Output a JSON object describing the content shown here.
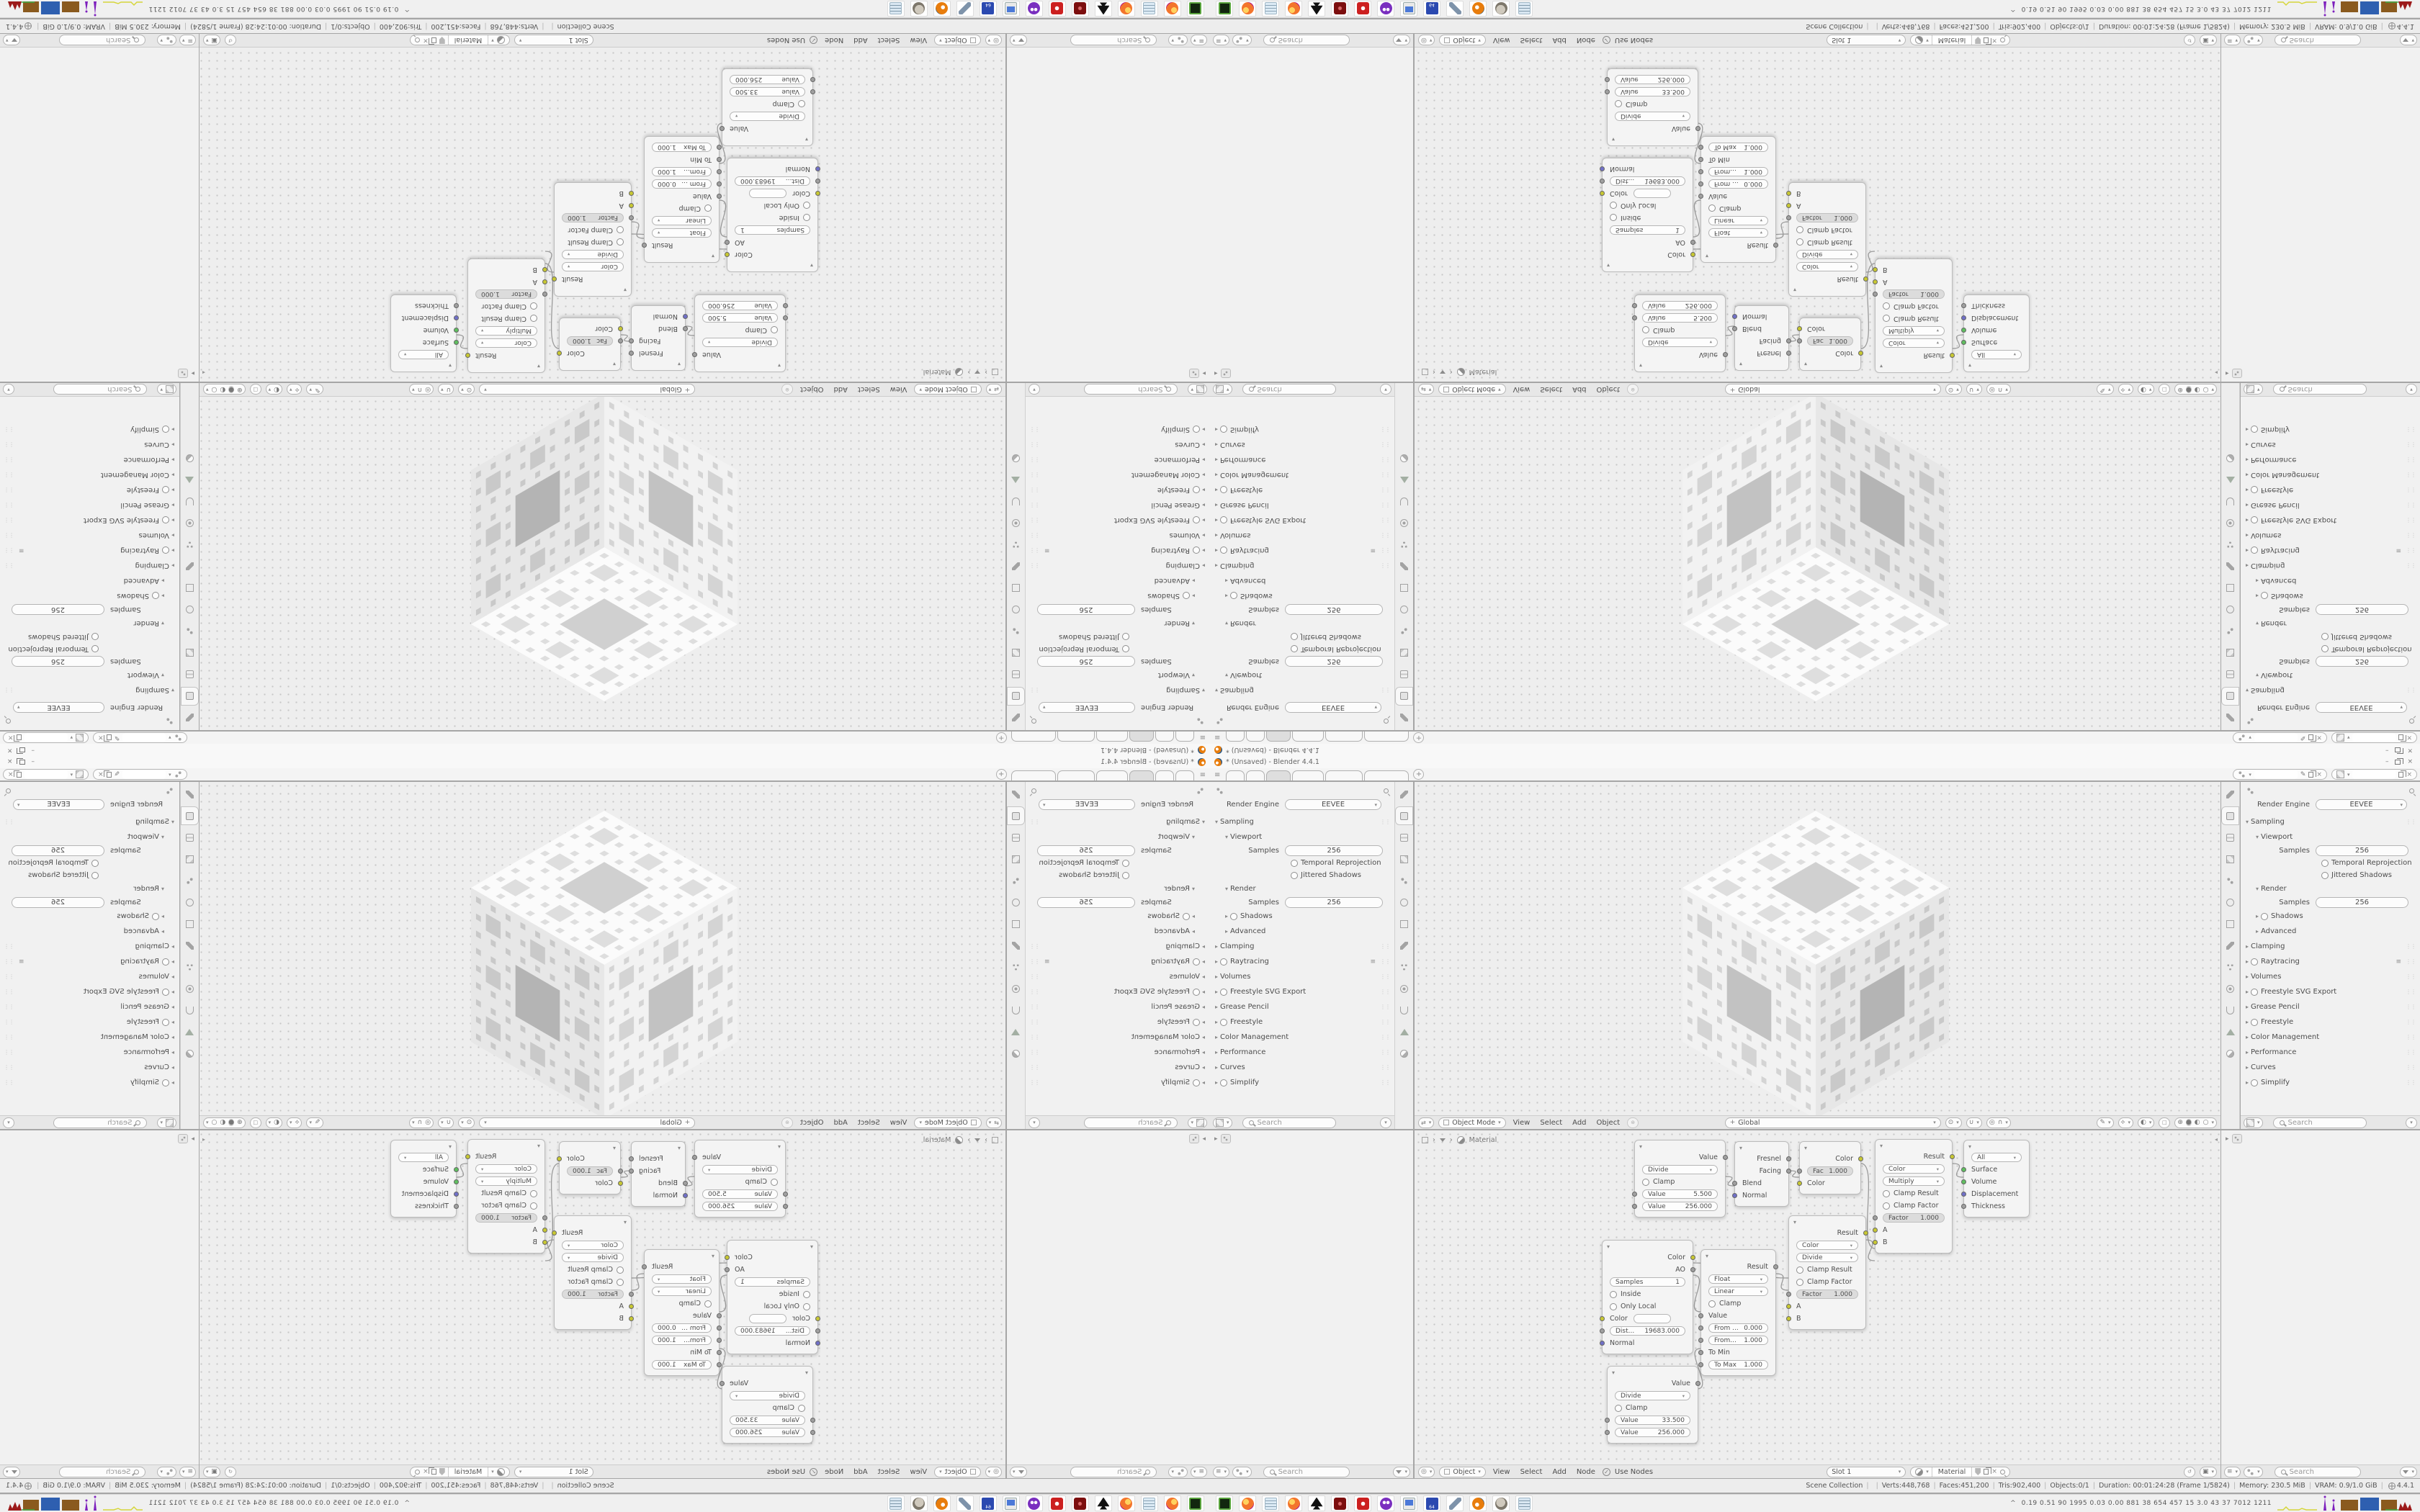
{
  "window": {
    "title": "* (Unsaved) - Blender 4.4.1",
    "minimize_label": "–",
    "close_label": "×"
  },
  "workspace_tabs": {
    "tabs": [
      "",
      "",
      "",
      "",
      "",
      ""
    ],
    "active_index": 2,
    "new_tab_label": "+"
  },
  "properties_panel": {
    "render_engine_label": "Render Engine",
    "render_engine_value": "EEVEE",
    "search_placeholder": "Search",
    "active_tab": "render",
    "tab_icons": [
      "tool",
      "render",
      "output",
      "view-layer",
      "scene",
      "world",
      "object",
      "modifiers",
      "particles",
      "physics",
      "constraints",
      "object-data",
      "material"
    ],
    "sections": [
      {
        "label": "Sampling",
        "state": "open",
        "indent": 0,
        "drag_dots": true
      },
      {
        "label": "Viewport",
        "state": "open",
        "indent": 1
      },
      {
        "type": "number",
        "label": "Samples",
        "value": "256"
      },
      {
        "type": "checkbox",
        "label": "Temporal Reprojection"
      },
      {
        "type": "checkbox",
        "label": "Jittered Shadows"
      },
      {
        "label": "Render",
        "state": "open",
        "indent": 1
      },
      {
        "type": "number",
        "label": "Samples",
        "value": "256"
      },
      {
        "label": "Shadows",
        "state": "closed",
        "indent": 1,
        "checkbox": true
      },
      {
        "label": "Advanced",
        "state": "closed",
        "indent": 1
      },
      {
        "label": "Clamping",
        "state": "closed",
        "indent": 0,
        "drag_dots": true
      },
      {
        "label": "Raytracing",
        "state": "closed",
        "indent": 0,
        "checkbox": true,
        "drag_dots": true,
        "list_icon": true
      },
      {
        "label": "Volumes",
        "state": "closed",
        "indent": 0,
        "drag_dots": true
      },
      {
        "label": "Freestyle SVG Export",
        "state": "closed",
        "indent": 0,
        "checkbox": true,
        "drag_dots": true
      },
      {
        "label": "Grease Pencil",
        "state": "closed",
        "indent": 0,
        "drag_dots": true
      },
      {
        "label": "Freestyle",
        "state": "closed",
        "indent": 0,
        "checkbox": true,
        "drag_dots": true
      },
      {
        "label": "Color Management",
        "state": "closed",
        "indent": 0,
        "drag_dots": true
      },
      {
        "label": "Performance",
        "state": "closed",
        "indent": 0,
        "drag_dots": true
      },
      {
        "label": "Curves",
        "state": "closed",
        "indent": 0,
        "drag_dots": true
      },
      {
        "label": "Simplify",
        "state": "closed",
        "indent": 0,
        "checkbox": true,
        "drag_dots": true
      }
    ]
  },
  "outliner": {
    "search_placeholder": "Search"
  },
  "viewport_header": {
    "mode": "Object Mode",
    "menus": [
      "View",
      "Select",
      "Add",
      "Object"
    ],
    "orientation": "Global"
  },
  "shader_editor": {
    "breadcrumb": "Material",
    "header": {
      "shader_type": "Object",
      "menus": [
        "View",
        "Select",
        "Add",
        "Node"
      ],
      "use_nodes_label": "Use Nodes",
      "slot": "Slot 1",
      "material_name": "Material"
    },
    "nodes": {
      "math1": {
        "output": "Value",
        "operation": "Divide",
        "clamp_label": "Clamp",
        "value1_label": "Value",
        "value1": "5.500",
        "value2_label": "Value",
        "value2": "256.000"
      },
      "layer_weight": {
        "output1": "Fresnel",
        "output2": "Facing",
        "input1": "Blend",
        "input2": "Normal"
      },
      "invert": {
        "output": "Color",
        "fac_label": "Fac",
        "fac_value": "1.000",
        "input": "Color"
      },
      "mix_divide": {
        "output": "Result",
        "data_type": "Color",
        "operation": "Divide",
        "clamp_result_label": "Clamp Result",
        "clamp_factor_label": "Clamp Factor",
        "factor_label": "Factor",
        "factor_value": "1.000",
        "input_a": "A",
        "input_b": "B"
      },
      "mix_multiply": {
        "output": "Result",
        "data_type": "Color",
        "operation": "Multiply",
        "clamp_result_label": "Clamp Result",
        "clamp_factor_label": "Clamp Factor",
        "factor_label": "Factor",
        "factor_value": "1.000",
        "input_a": "A",
        "input_b": "B"
      },
      "output_node": {
        "target": "All",
        "input1": "Surface",
        "input2": "Volume",
        "input3": "Displacement",
        "input4": "Thickness"
      },
      "ao": {
        "output1": "Color",
        "output2": "AO",
        "samples_label": "Samples",
        "samples_value": "1",
        "inside_label": "Inside",
        "only_local_label": "Only Local",
        "color_label": "Color",
        "distance_label": "Dist...",
        "distance_value": "19683.000",
        "normal_label": "Normal"
      },
      "map_range": {
        "output": "Result",
        "data_type": "Float",
        "interpolation": "Linear",
        "clamp_label": "Clamp",
        "value_label": "Value",
        "from_min_label": "From ...",
        "from_min_value": "0.000",
        "from_max_label": "From...",
        "from_max_value": "1.000",
        "to_min_label": "To Min",
        "to_max_label": "To Max",
        "to_max_value": "1.000"
      },
      "math2": {
        "output": "Value",
        "operation": "Divide",
        "clamp_label": "Clamp",
        "value1_label": "Value",
        "value1": "33.500",
        "value2_label": "Value",
        "value2": "256.000"
      }
    }
  },
  "status_bar": {
    "items": [
      "Scene Collection",
      "",
      "Verts:448,768",
      "Faces:451,200",
      "Tris:902,400",
      "Objects:0/1",
      "Duration: 00:01:24:28 (Frame 1/5824)",
      "Memory: 230.5 MiB",
      "VRAM: 0.9/1.0 GiB",
      "4.4.1"
    ]
  },
  "taskbar": {
    "icons": [
      "terminal",
      "firefox",
      "notepad",
      "firefox-2",
      "inkscape",
      "package-red",
      "settings-red",
      "owl-purple",
      "display",
      "floppy-64",
      "wrench",
      "blender",
      "gimp",
      "scroll"
    ],
    "monitor_values": "0.19 0.51  90  1995 0.03 0.00  881  38  654  457  15  3.0  43  37  7012 1211"
  },
  "colors": {
    "blender_orange": "#e87d0d",
    "socket_color": "#c8c832",
    "socket_vector": "#7070c8",
    "socket_shader": "#5fbf5f",
    "socket_float": "#a0a0a0",
    "graph_yellow": "#d6d63a",
    "graph_purple": "#7d1fbd",
    "graph_brown": "#8a5a1e",
    "graph_blue": "#2e5fb0",
    "graph_green": "#3fae4a",
    "graph_red": "#9c1a1a"
  }
}
